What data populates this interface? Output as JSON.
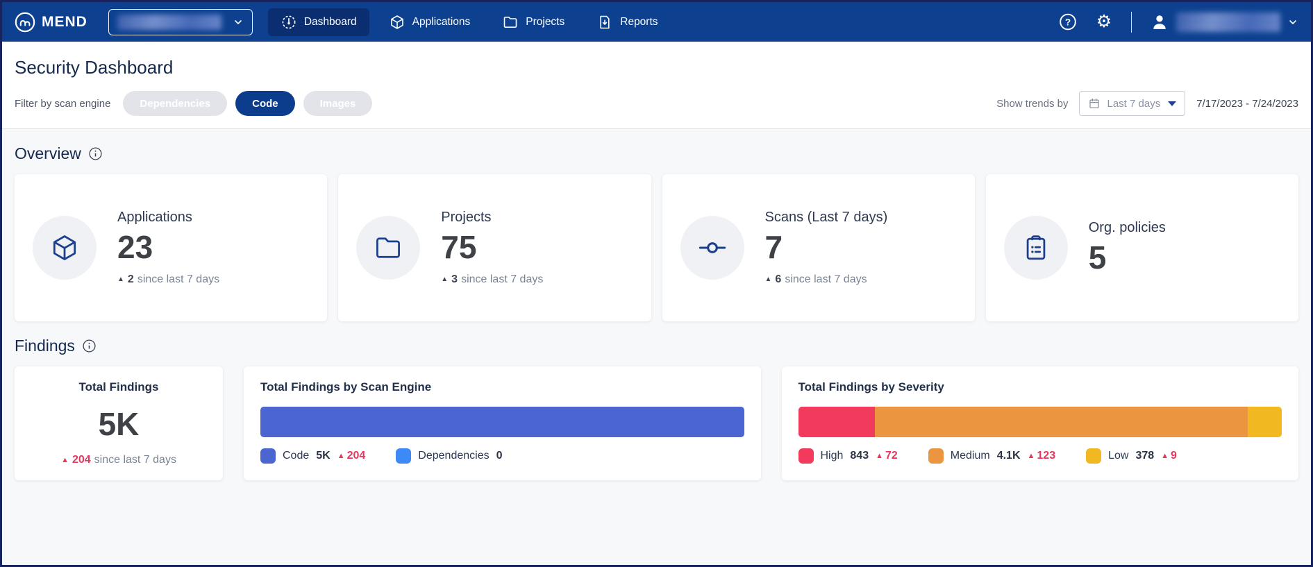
{
  "navbar": {
    "brand": "MEND",
    "tabs": [
      {
        "label": "Dashboard"
      },
      {
        "label": "Applications"
      },
      {
        "label": "Projects"
      },
      {
        "label": "Reports"
      }
    ]
  },
  "header": {
    "title": "Security Dashboard",
    "filter_label": "Filter by scan engine",
    "filters": [
      {
        "label": "Dependencies",
        "active": false
      },
      {
        "label": "Code",
        "active": true
      },
      {
        "label": "Images",
        "active": false
      }
    ],
    "trends_label": "Show trends by",
    "trends_value": "Last 7 days",
    "date_range": "7/17/2023 - 7/24/2023"
  },
  "overview": {
    "heading": "Overview",
    "cards": [
      {
        "label": "Applications",
        "value": "23",
        "trend": "2",
        "trend_suffix": "since last 7 days"
      },
      {
        "label": "Projects",
        "value": "75",
        "trend": "3",
        "trend_suffix": "since last 7 days"
      },
      {
        "label": "Scans (Last 7 days)",
        "value": "7",
        "trend": "6",
        "trend_suffix": "since last 7 days"
      },
      {
        "label": "Org. policies",
        "value": "5"
      }
    ]
  },
  "findings": {
    "heading": "Findings",
    "total": {
      "title": "Total Findings",
      "value": "5K",
      "trend": "204",
      "trend_suffix": "since last 7 days"
    }
  },
  "chart_data": [
    {
      "type": "bar",
      "stacked": true,
      "title": "Total Findings by Scan Engine",
      "series": [
        {
          "name": "Code",
          "value": 5000,
          "display": "5K",
          "trend_display": "204",
          "color": "#4c66d1"
        },
        {
          "name": "Dependencies",
          "value": 0,
          "display": "0",
          "color": "#3d8af7"
        }
      ]
    },
    {
      "type": "bar",
      "stacked": true,
      "title": "Total Findings by Severity",
      "series": [
        {
          "name": "High",
          "value": 843,
          "display": "843",
          "trend_display": "72",
          "color": "#f23a5c"
        },
        {
          "name": "Medium",
          "value": 4100,
          "display": "4.1K",
          "trend_display": "123",
          "color": "#ec9540"
        },
        {
          "name": "Low",
          "value": 378,
          "display": "378",
          "trend_display": "9",
          "color": "#f2b822"
        }
      ]
    }
  ]
}
